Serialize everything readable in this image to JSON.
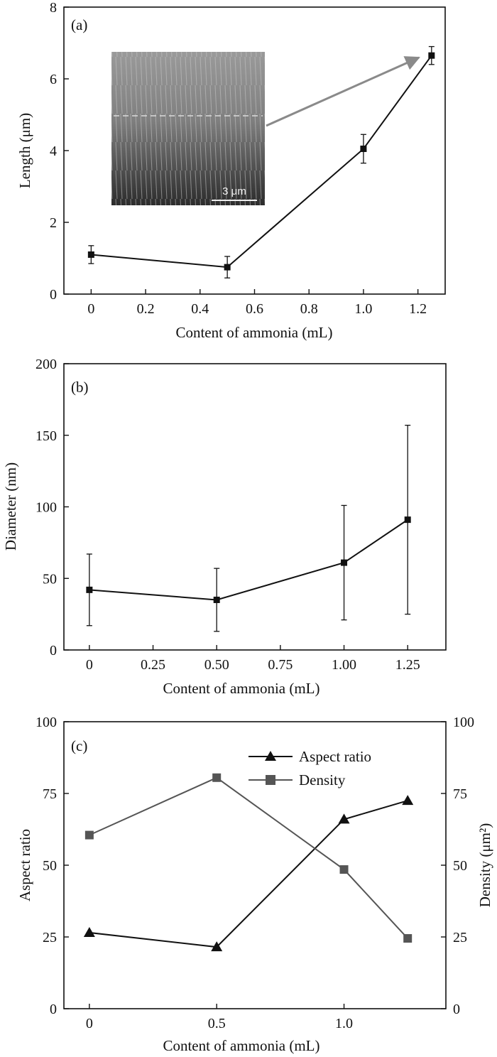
{
  "chart_data": [
    {
      "id": "a",
      "type": "line",
      "panel_label": "(a)",
      "xlabel": "Content of ammonia (mL)",
      "ylabel": "Length (μm)",
      "xlim": [
        -0.1,
        1.3
      ],
      "ylim": [
        0,
        8
      ],
      "x_ticks": [
        0,
        0.2,
        0.4,
        0.6,
        0.8,
        1.0,
        1.2
      ],
      "x_tick_labels": [
        "0",
        "0.2",
        "0.4",
        "0.6",
        "0.8",
        "1.0",
        "1.2"
      ],
      "y_ticks": [
        0,
        2,
        4,
        6,
        8
      ],
      "y_tick_labels": [
        "0",
        "2",
        "4",
        "6",
        "8"
      ],
      "series": [
        {
          "x": [
            0,
            0.5,
            1.0,
            1.25
          ],
          "y": [
            1.1,
            0.75,
            4.05,
            6.65
          ],
          "err": [
            0.25,
            0.3,
            0.4,
            0.25
          ],
          "marker": "square",
          "color": "#111111"
        }
      ],
      "inset": {
        "type": "sem-image",
        "scale_bar_label": "3 μm",
        "arrow_color": "#8a8a8a"
      }
    },
    {
      "id": "b",
      "type": "line",
      "panel_label": "(b)",
      "xlabel": "Content of ammonia (mL)",
      "ylabel": "Diameter (nm)",
      "xlim": [
        -0.1,
        1.4
      ],
      "ylim": [
        0,
        200
      ],
      "x_ticks": [
        0,
        0.25,
        0.5,
        0.75,
        1.0,
        1.25
      ],
      "x_tick_labels": [
        "0",
        "0.25",
        "0.50",
        "0.75",
        "1.00",
        "1.25"
      ],
      "y_ticks": [
        0,
        50,
        100,
        150,
        200
      ],
      "y_tick_labels": [
        "0",
        "50",
        "100",
        "150",
        "200"
      ],
      "series": [
        {
          "x": [
            0,
            0.5,
            1.0,
            1.25
          ],
          "y": [
            42,
            35,
            61,
            91
          ],
          "err": [
            25,
            22,
            40,
            66
          ],
          "marker": "square",
          "color": "#111111"
        }
      ]
    },
    {
      "id": "c",
      "type": "line",
      "panel_label": "(c)",
      "xlabel": "Content of ammonia (mL)",
      "ylabel": "Aspect ratio",
      "ylabel_right": "Density (μm²)",
      "xlim": [
        -0.1,
        1.4
      ],
      "ylim": [
        0,
        100
      ],
      "ylim_right": [
        0,
        100
      ],
      "x_ticks": [
        0,
        0.5,
        1.0
      ],
      "x_tick_labels": [
        "0",
        "0.5",
        "1.0"
      ],
      "y_ticks": [
        0,
        25,
        50,
        75,
        100
      ],
      "y_tick_labels": [
        "0",
        "25",
        "50",
        "75",
        "100"
      ],
      "legend_position": "top-right",
      "series": [
        {
          "name": "Aspect ratio",
          "x": [
            0,
            0.5,
            1.0,
            1.25
          ],
          "y": [
            26.5,
            21.5,
            66,
            72.5
          ],
          "marker": "triangle",
          "color": "#111111",
          "axis": "left"
        },
        {
          "name": "Density",
          "x": [
            0,
            0.5,
            1.0,
            1.25
          ],
          "y": [
            60.5,
            80.5,
            48.5,
            24.5
          ],
          "marker": "square",
          "color": "#555555",
          "axis": "right"
        }
      ]
    }
  ]
}
